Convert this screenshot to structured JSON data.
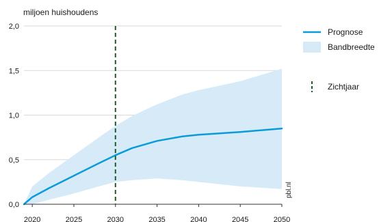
{
  "chart_data": {
    "type": "area",
    "ylabel": "miljoen huishoudens",
    "ylim": [
      0,
      2.0
    ],
    "xlim": [
      2019,
      2050
    ],
    "y_ticks": [
      {
        "value": 0,
        "label": "0,0"
      },
      {
        "value": 0.5,
        "label": "0,5"
      },
      {
        "value": 1.0,
        "label": "1,0"
      },
      {
        "value": 1.5,
        "label": "1,5"
      },
      {
        "value": 2.0,
        "label": "2,0"
      }
    ],
    "x_ticks": [
      {
        "value": 2020,
        "label": "2020"
      },
      {
        "value": 2025,
        "label": "2025"
      },
      {
        "value": 2030,
        "label": "2030"
      },
      {
        "value": 2035,
        "label": "2035"
      },
      {
        "value": 2040,
        "label": "2040"
      },
      {
        "value": 2045,
        "label": "2045"
      },
      {
        "value": 2050,
        "label": "2050"
      }
    ],
    "grid": "horizontal",
    "legend_position": "right",
    "series": [
      {
        "name": "Prognose",
        "color": "#0a9bd9",
        "x": [
          2019,
          2020,
          2022,
          2025,
          2028,
          2030,
          2032,
          2035,
          2038,
          2040,
          2045,
          2050
        ],
        "y": [
          0,
          0.08,
          0.18,
          0.32,
          0.46,
          0.55,
          0.63,
          0.71,
          0.76,
          0.78,
          0.81,
          0.85
        ]
      }
    ],
    "band": {
      "name": "Bandbreedte",
      "color": "#d6eaf8",
      "x": [
        2019,
        2020,
        2022,
        2025,
        2028,
        2030,
        2032,
        2035,
        2038,
        2040,
        2045,
        2050
      ],
      "upper": [
        0,
        0.2,
        0.35,
        0.55,
        0.75,
        0.88,
        0.99,
        1.12,
        1.23,
        1.28,
        1.38,
        1.52
      ],
      "lower": [
        0,
        0.0,
        0.05,
        0.12,
        0.2,
        0.25,
        0.27,
        0.29,
        0.27,
        0.25,
        0.2,
        0.17
      ]
    },
    "vertical_line": {
      "name": "Zichtjaar",
      "x": 2030,
      "color": "#1e5a2b",
      "style": "dashed"
    },
    "annotation": "pbl.nl"
  }
}
